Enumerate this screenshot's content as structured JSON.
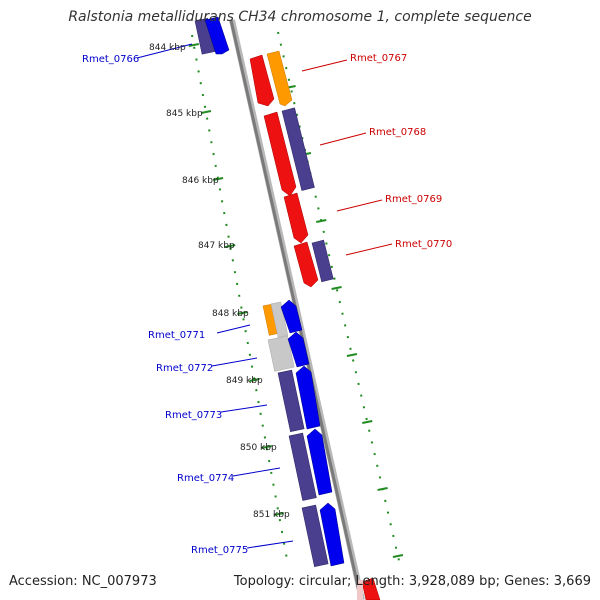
{
  "title": "Ralstonia metallidurans CH34 chromosome 1, complete sequence",
  "footer": {
    "accession": "Accession: NC_007973",
    "summary": "Topology: circular; Length: 3,928,089 bp; Genes: 3,669"
  },
  "colors": {
    "forward_strand": "#0000ee",
    "reverse_strand": "#ee1111",
    "other_dark": "#4a3f8f",
    "other_orange": "#ff9900",
    "other_gray": "#c8c8c8",
    "tick": "#228b22",
    "backbone": "#888888"
  },
  "kbp_ticks": [
    "844 kbp",
    "845 kbp",
    "846 kbp",
    "847 kbp",
    "848 kbp",
    "849 kbp",
    "850 kbp",
    "851 kbp"
  ],
  "genes": {
    "forward": [
      {
        "label": "Rmet_0766"
      },
      {
        "label": "Rmet_0771"
      },
      {
        "label": "Rmet_0772"
      },
      {
        "label": "Rmet_0773"
      },
      {
        "label": "Rmet_0774"
      },
      {
        "label": "Rmet_0775"
      }
    ],
    "reverse": [
      {
        "label": "Rmet_0767"
      },
      {
        "label": "Rmet_0768"
      },
      {
        "label": "Rmet_0769"
      },
      {
        "label": "Rmet_0770"
      }
    ]
  }
}
